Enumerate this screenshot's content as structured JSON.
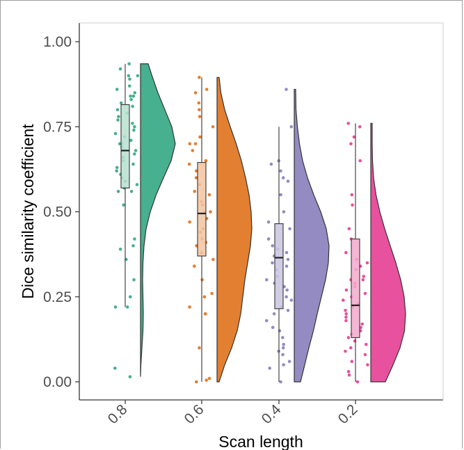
{
  "chart_data": {
    "type": "raincloud",
    "title": "",
    "xlabel": "Scan length",
    "ylabel": "Dice similarity coefficient",
    "categories": [
      "0.8",
      "0.6",
      "0.4",
      "0.2"
    ],
    "ylim": [
      -0.05,
      1.05
    ],
    "yticks": [
      "0.00",
      "0.25",
      "0.50",
      "0.75",
      "1.00"
    ],
    "grid": false,
    "legend": "none",
    "colors": [
      "#47b08e",
      "#e27f31",
      "#938bc1",
      "#e8519d"
    ],
    "box_colors": [
      "#b7dfd0",
      "#f2c3a0",
      "#c8c4e0",
      "#f3a9cd"
    ],
    "boxplots": [
      {
        "category": "0.8",
        "min": 0.22,
        "q1": 0.57,
        "median": 0.68,
        "q3": 0.815,
        "max": 0.935
      },
      {
        "category": "0.6",
        "min": 0.0,
        "q1": 0.37,
        "median": 0.495,
        "q3": 0.645,
        "max": 0.895
      },
      {
        "category": "0.4",
        "min": 0.0,
        "q1": 0.215,
        "median": 0.365,
        "q3": 0.465,
        "max": 0.75
      },
      {
        "category": "0.2",
        "min": 0.0,
        "q1": 0.13,
        "median": 0.225,
        "q3": 0.42,
        "max": 0.76
      }
    ],
    "densities": [
      {
        "category": "0.8",
        "y": [
          0.015,
          0.05,
          0.1,
          0.15,
          0.2,
          0.25,
          0.3,
          0.35,
          0.4,
          0.45,
          0.5,
          0.55,
          0.6,
          0.65,
          0.7,
          0.75,
          0.8,
          0.85,
          0.9,
          0.935
        ],
        "width": [
          0.0,
          0.01,
          0.04,
          0.07,
          0.08,
          0.07,
          0.06,
          0.07,
          0.1,
          0.16,
          0.28,
          0.45,
          0.66,
          0.88,
          1.0,
          0.9,
          0.7,
          0.5,
          0.33,
          0.22
        ]
      },
      {
        "category": "0.6",
        "y": [
          0.0,
          0.05,
          0.1,
          0.15,
          0.2,
          0.25,
          0.3,
          0.35,
          0.4,
          0.45,
          0.5,
          0.55,
          0.6,
          0.65,
          0.7,
          0.75,
          0.8,
          0.85,
          0.895
        ],
        "width": [
          0.06,
          0.22,
          0.42,
          0.58,
          0.68,
          0.74,
          0.8,
          0.88,
          0.96,
          1.0,
          0.98,
          0.92,
          0.82,
          0.7,
          0.55,
          0.38,
          0.22,
          0.11,
          0.06
        ]
      },
      {
        "category": "0.4",
        "y": [
          0.0,
          0.05,
          0.1,
          0.15,
          0.2,
          0.25,
          0.3,
          0.35,
          0.4,
          0.45,
          0.5,
          0.55,
          0.6,
          0.65,
          0.7,
          0.75,
          0.8,
          0.86
        ],
        "width": [
          0.18,
          0.3,
          0.42,
          0.55,
          0.66,
          0.78,
          0.9,
          0.98,
          1.0,
          0.92,
          0.76,
          0.56,
          0.38,
          0.24,
          0.15,
          0.09,
          0.05,
          0.04
        ]
      },
      {
        "category": "0.2",
        "y": [
          0.0,
          0.05,
          0.1,
          0.15,
          0.2,
          0.25,
          0.3,
          0.35,
          0.4,
          0.45,
          0.5,
          0.55,
          0.6,
          0.65,
          0.7,
          0.76
        ],
        "width": [
          0.42,
          0.64,
          0.84,
          0.97,
          1.0,
          0.96,
          0.86,
          0.72,
          0.56,
          0.4,
          0.26,
          0.15,
          0.08,
          0.05,
          0.04,
          0.04
        ]
      }
    ],
    "points": [
      {
        "category": "0.8",
        "values": [
          0.935,
          0.92,
          0.9,
          0.9,
          0.89,
          0.87,
          0.86,
          0.85,
          0.84,
          0.84,
          0.83,
          0.82,
          0.81,
          0.8,
          0.79,
          0.78,
          0.77,
          0.76,
          0.75,
          0.74,
          0.73,
          0.72,
          0.71,
          0.7,
          0.7,
          0.69,
          0.68,
          0.67,
          0.66,
          0.65,
          0.64,
          0.63,
          0.62,
          0.61,
          0.6,
          0.59,
          0.58,
          0.57,
          0.56,
          0.56,
          0.52,
          0.42,
          0.4,
          0.39,
          0.36,
          0.3,
          0.25,
          0.22,
          0.22,
          0.04,
          0.015
        ]
      },
      {
        "category": "0.6",
        "values": [
          0.895,
          0.86,
          0.85,
          0.82,
          0.8,
          0.78,
          0.75,
          0.72,
          0.7,
          0.7,
          0.68,
          0.65,
          0.64,
          0.62,
          0.6,
          0.58,
          0.56,
          0.55,
          0.53,
          0.52,
          0.5,
          0.5,
          0.48,
          0.47,
          0.45,
          0.44,
          0.42,
          0.41,
          0.4,
          0.38,
          0.36,
          0.34,
          0.3,
          0.26,
          0.25,
          0.22,
          0.2,
          0.2,
          0.1,
          0.01,
          0.005,
          0.0
        ]
      },
      {
        "category": "0.4",
        "values": [
          0.86,
          0.75,
          0.65,
          0.64,
          0.62,
          0.6,
          0.59,
          0.55,
          0.5,
          0.47,
          0.45,
          0.42,
          0.4,
          0.39,
          0.38,
          0.37,
          0.36,
          0.35,
          0.34,
          0.33,
          0.31,
          0.3,
          0.29,
          0.28,
          0.27,
          0.25,
          0.24,
          0.22,
          0.21,
          0.2,
          0.18,
          0.16,
          0.15,
          0.13,
          0.11,
          0.1,
          0.09,
          0.08,
          0.06,
          0.05,
          0.04,
          0.0
        ]
      },
      {
        "category": "0.2",
        "values": [
          0.76,
          0.75,
          0.72,
          0.7,
          0.65,
          0.55,
          0.52,
          0.45,
          0.42,
          0.38,
          0.36,
          0.35,
          0.34,
          0.33,
          0.31,
          0.3,
          0.3,
          0.29,
          0.28,
          0.27,
          0.26,
          0.25,
          0.24,
          0.23,
          0.22,
          0.21,
          0.2,
          0.19,
          0.18,
          0.17,
          0.16,
          0.15,
          0.14,
          0.13,
          0.12,
          0.11,
          0.1,
          0.09,
          0.08,
          0.06,
          0.05,
          0.03,
          0.02,
          0.0
        ]
      }
    ]
  }
}
